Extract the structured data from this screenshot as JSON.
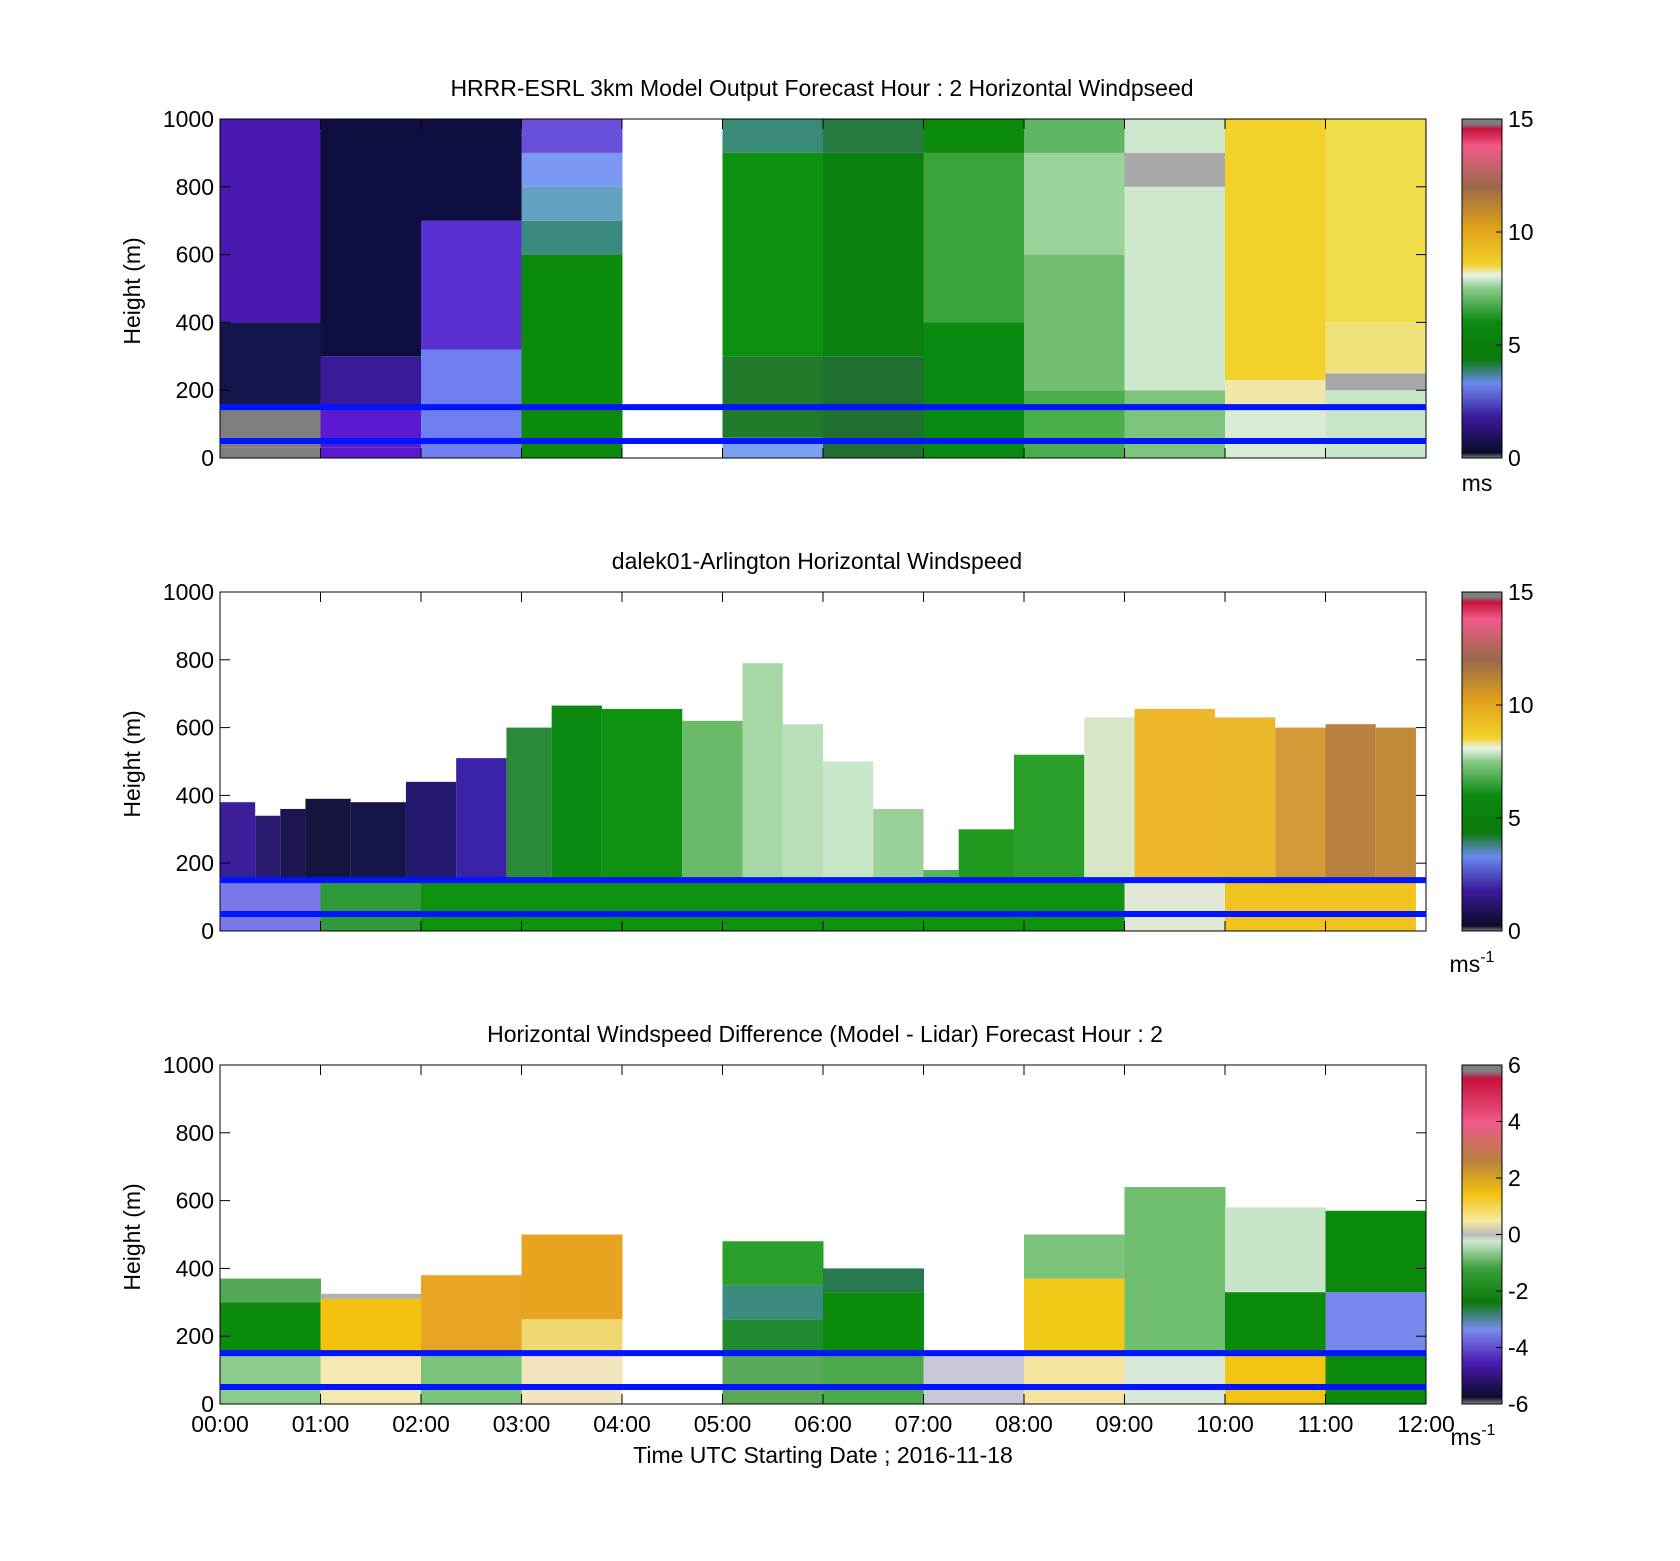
{
  "figure": {
    "time_labels": [
      "00:00",
      "01:00",
      "02:00",
      "03:00",
      "04:00",
      "05:00",
      "06:00",
      "07:00",
      "08:00",
      "09:00",
      "10:00",
      "11:00",
      "12:00"
    ],
    "xlabel": "Time UTC  Starting Date ; 2016-11-18",
    "ref_lines_m": [
      150,
      50
    ],
    "ref_line_color": "#0015ff"
  },
  "chart_data": [
    {
      "id": "model",
      "type": "heatmap",
      "title": "HRRR-ESRL 3km Model Output   Forecast Hour : 2 Horizontal Windpseed",
      "ylabel": "Height (m)",
      "ylim": [
        0,
        1000
      ],
      "yticks": [
        0,
        200,
        400,
        600,
        800,
        1000
      ],
      "x_hours": [
        0,
        1,
        2,
        3,
        4,
        5,
        6,
        7,
        8,
        9,
        10,
        11
      ],
      "cbar": {
        "min": 0,
        "max": 15,
        "ticks": [
          0,
          5,
          10,
          15
        ],
        "unit": "ms",
        "unit_sup": ""
      },
      "columns": [
        {
          "h": 0,
          "stops": [
            [
              0,
              30,
              "#7f7f7f"
            ],
            [
              30,
              150,
              "#7f7f7f"
            ],
            [
              150,
              400,
              "#14154a"
            ],
            [
              400,
              1000,
              "#4a18b0"
            ]
          ]
        },
        {
          "h": 1,
          "stops": [
            [
              0,
              30,
              "#5a19d0"
            ],
            [
              30,
              150,
              "#5a19d0"
            ],
            [
              150,
              300,
              "#3b1a99"
            ],
            [
              300,
              1000,
              "#0e0e40"
            ]
          ]
        },
        {
          "h": 2,
          "stops": [
            [
              0,
              150,
              "#6f7ef0"
            ],
            [
              150,
              320,
              "#6f7ef0"
            ],
            [
              320,
              700,
              "#5a30d0"
            ],
            [
              700,
              1000,
              "#0e0e40"
            ]
          ]
        },
        {
          "h": 3,
          "stops": [
            [
              0,
              150,
              "#0b8a0b"
            ],
            [
              150,
              600,
              "#0b8a0b"
            ],
            [
              600,
              700,
              "#3a8a80"
            ],
            [
              700,
              800,
              "#62a2c0"
            ],
            [
              800,
              900,
              "#7b98f2"
            ],
            [
              900,
              1000,
              "#6a4fd8"
            ]
          ]
        },
        {
          "h": 5,
          "stops": [
            [
              0,
              60,
              "#7ba0f0"
            ],
            [
              60,
              300,
              "#1f7a2a"
            ],
            [
              300,
              900,
              "#0b9010"
            ],
            [
              900,
              1000,
              "#3a8a78"
            ]
          ]
        },
        {
          "h": 6,
          "stops": [
            [
              0,
              300,
              "#1f7030"
            ],
            [
              300,
              900,
              "#0a8010"
            ],
            [
              900,
              1000,
              "#277a40"
            ]
          ]
        },
        {
          "h": 7,
          "stops": [
            [
              0,
              400,
              "#0a8a10"
            ],
            [
              400,
              900,
              "#3aa43a"
            ],
            [
              900,
              1000,
              "#0b8a0b"
            ]
          ]
        },
        {
          "h": 8,
          "stops": [
            [
              0,
              200,
              "#4aae4a"
            ],
            [
              200,
              600,
              "#72bf72"
            ],
            [
              600,
              900,
              "#9ad29a"
            ],
            [
              900,
              1000,
              "#60b660"
            ]
          ]
        },
        {
          "h": 9,
          "stops": [
            [
              0,
              200,
              "#7dc47d"
            ],
            [
              200,
              800,
              "#cde8cd"
            ],
            [
              800,
              900,
              "#a8a8a8"
            ],
            [
              900,
              1000,
              "#cde8cd"
            ]
          ]
        },
        {
          "h": 10,
          "stops": [
            [
              0,
              150,
              "#d8ecd8"
            ],
            [
              150,
              230,
              "#f0e6a8"
            ],
            [
              230,
              1000,
              "#f2d22a"
            ]
          ]
        },
        {
          "h": 11,
          "stops": [
            [
              0,
              200,
              "#c8e6c8"
            ],
            [
              200,
              250,
              "#a8a8a8"
            ],
            [
              250,
              400,
              "#f0e27a"
            ],
            [
              400,
              1000,
              "#f1dc4a"
            ]
          ]
        }
      ]
    },
    {
      "id": "lidar",
      "type": "heatmap",
      "title": "dalek01-Arlington  Horizontal Windspeed",
      "ylabel": "Height (m)",
      "ylim": [
        0,
        1000
      ],
      "yticks": [
        0,
        200,
        400,
        600,
        800,
        1000
      ],
      "cbar": {
        "min": 0,
        "max": 15,
        "ticks": [
          0,
          5,
          10,
          15
        ],
        "unit": "ms",
        "unit_sup": "-1"
      },
      "segments": [
        {
          "t0": 0.0,
          "t1": 0.35,
          "top": 380,
          "c": "#3a1e9a"
        },
        {
          "t0": 0.35,
          "t1": 0.6,
          "top": 340,
          "c": "#2a1a70"
        },
        {
          "t0": 0.6,
          "t1": 0.85,
          "top": 360,
          "c": "#1b1650"
        },
        {
          "t0": 0.85,
          "t1": 1.3,
          "top": 390,
          "c": "#14143e"
        },
        {
          "t0": 1.3,
          "t1": 1.85,
          "top": 380,
          "c": "#16154a"
        },
        {
          "t0": 1.85,
          "t1": 2.35,
          "top": 440,
          "c": "#241a70"
        },
        {
          "t0": 2.35,
          "t1": 2.85,
          "top": 510,
          "c": "#3b22a8"
        },
        {
          "t0": 2.85,
          "t1": 3.3,
          "top": 600,
          "c": "#2a8a3a"
        },
        {
          "t0": 3.3,
          "t1": 3.8,
          "top": 665,
          "c": "#0a8a10"
        },
        {
          "t0": 3.8,
          "t1": 4.6,
          "top": 655,
          "c": "#0f920f"
        },
        {
          "t0": 4.6,
          "t1": 5.2,
          "top": 620,
          "c": "#6aba6a"
        },
        {
          "t0": 5.2,
          "t1": 5.6,
          "top": 790,
          "c": "#a6d8a6"
        },
        {
          "t0": 5.6,
          "t1": 6.0,
          "top": 610,
          "c": "#b9dfb9"
        },
        {
          "t0": 6.0,
          "t1": 6.5,
          "top": 500,
          "c": "#c8e6c8"
        },
        {
          "t0": 6.5,
          "t1": 7.0,
          "top": 360,
          "c": "#9ad09a"
        },
        {
          "t0": 7.0,
          "t1": 7.35,
          "top": 180,
          "c": "#58b258"
        },
        {
          "t0": 7.35,
          "t1": 7.9,
          "top": 300,
          "c": "#1f9a1f"
        },
        {
          "t0": 7.9,
          "t1": 8.6,
          "top": 520,
          "c": "#2aa02a"
        },
        {
          "t0": 8.6,
          "t1": 9.1,
          "top": 630,
          "c": "#d6e6c6"
        },
        {
          "t0": 9.1,
          "t1": 9.9,
          "top": 655,
          "c": "#efb82a"
        },
        {
          "t0": 9.9,
          "t1": 10.5,
          "top": 630,
          "c": "#eab82a"
        },
        {
          "t0": 10.5,
          "t1": 11.0,
          "top": 600,
          "c": "#d49a38"
        },
        {
          "t0": 11.0,
          "t1": 11.5,
          "top": 610,
          "c": "#b98042"
        },
        {
          "t0": 11.5,
          "t1": 11.9,
          "top": 600,
          "c": "#c48a3c"
        }
      ],
      "near_surface": [
        {
          "t0": 0.0,
          "t1": 1.0,
          "c": "#7a78e8"
        },
        {
          "t0": 1.0,
          "t1": 2.0,
          "c": "#2e9a3a"
        },
        {
          "t0": 2.0,
          "t1": 9.0,
          "c": "#0f920f"
        },
        {
          "t0": 9.0,
          "t1": 10.0,
          "c": "#dfe9d6"
        },
        {
          "t0": 10.0,
          "t1": 11.9,
          "c": "#f2c21e"
        }
      ]
    },
    {
      "id": "difference",
      "type": "heatmap",
      "title": "Horizontal Windspeed Difference (Model - Lidar) Forecast Hour : 2",
      "ylabel": "Height (m)",
      "ylim": [
        0,
        1000
      ],
      "yticks": [
        0,
        200,
        400,
        600,
        800,
        1000
      ],
      "cbar": {
        "min": -6,
        "max": 6,
        "ticks": [
          -6,
          -4,
          -2,
          0,
          2,
          4,
          6
        ],
        "unit": "ms",
        "unit_sup": "-1"
      },
      "columns": [
        {
          "h": 0,
          "stops": [
            [
              0,
              150,
              "#8ccc8c"
            ],
            [
              150,
              300,
              "#0b8a0b"
            ],
            [
              300,
              370,
              "#54aa54"
            ]
          ]
        },
        {
          "h": 1,
          "stops": [
            [
              0,
              150,
              "#f5e8b0"
            ],
            [
              150,
              310,
              "#f2c20e"
            ],
            [
              310,
              325,
              "#b0b0b0"
            ]
          ]
        },
        {
          "h": 2,
          "stops": [
            [
              0,
              150,
              "#7cc47c"
            ],
            [
              150,
              380,
              "#e8a424"
            ]
          ]
        },
        {
          "h": 3,
          "stops": [
            [
              0,
              150,
              "#f2e6c0"
            ],
            [
              150,
              250,
              "#f0d870"
            ],
            [
              250,
              500,
              "#e8a41e"
            ]
          ]
        },
        {
          "h": 5,
          "stops": [
            [
              0,
              150,
              "#5aa85a"
            ],
            [
              150,
              250,
              "#1f8a30"
            ],
            [
              250,
              350,
              "#3a8a80"
            ],
            [
              350,
              480,
              "#2aa02a"
            ]
          ]
        },
        {
          "h": 6,
          "stops": [
            [
              0,
              150,
              "#4aaa4a"
            ],
            [
              150,
              330,
              "#0b8a0b"
            ],
            [
              330,
              400,
              "#277a50"
            ]
          ]
        },
        {
          "h": 7,
          "stops": [
            [
              0,
              150,
              "#c8c8d8"
            ]
          ]
        },
        {
          "h": 8,
          "stops": [
            [
              0,
              150,
              "#f4e4a0"
            ],
            [
              150,
              370,
              "#f2c816"
            ],
            [
              370,
              500,
              "#7cc47c"
            ]
          ]
        },
        {
          "h": 9,
          "stops": [
            [
              0,
              150,
              "#d8e8d8"
            ],
            [
              150,
              640,
              "#6ebe6e"
            ]
          ]
        },
        {
          "h": 10,
          "stops": [
            [
              0,
              150,
              "#f2c414"
            ],
            [
              150,
              330,
              "#0b8a0b"
            ],
            [
              330,
              580,
              "#c8e4c8"
            ]
          ]
        },
        {
          "h": 11,
          "stops": [
            [
              0,
              150,
              "#0b8a0b"
            ],
            [
              150,
              330,
              "#7888ec"
            ],
            [
              330,
              570,
              "#0b8a0b"
            ]
          ]
        }
      ]
    }
  ]
}
